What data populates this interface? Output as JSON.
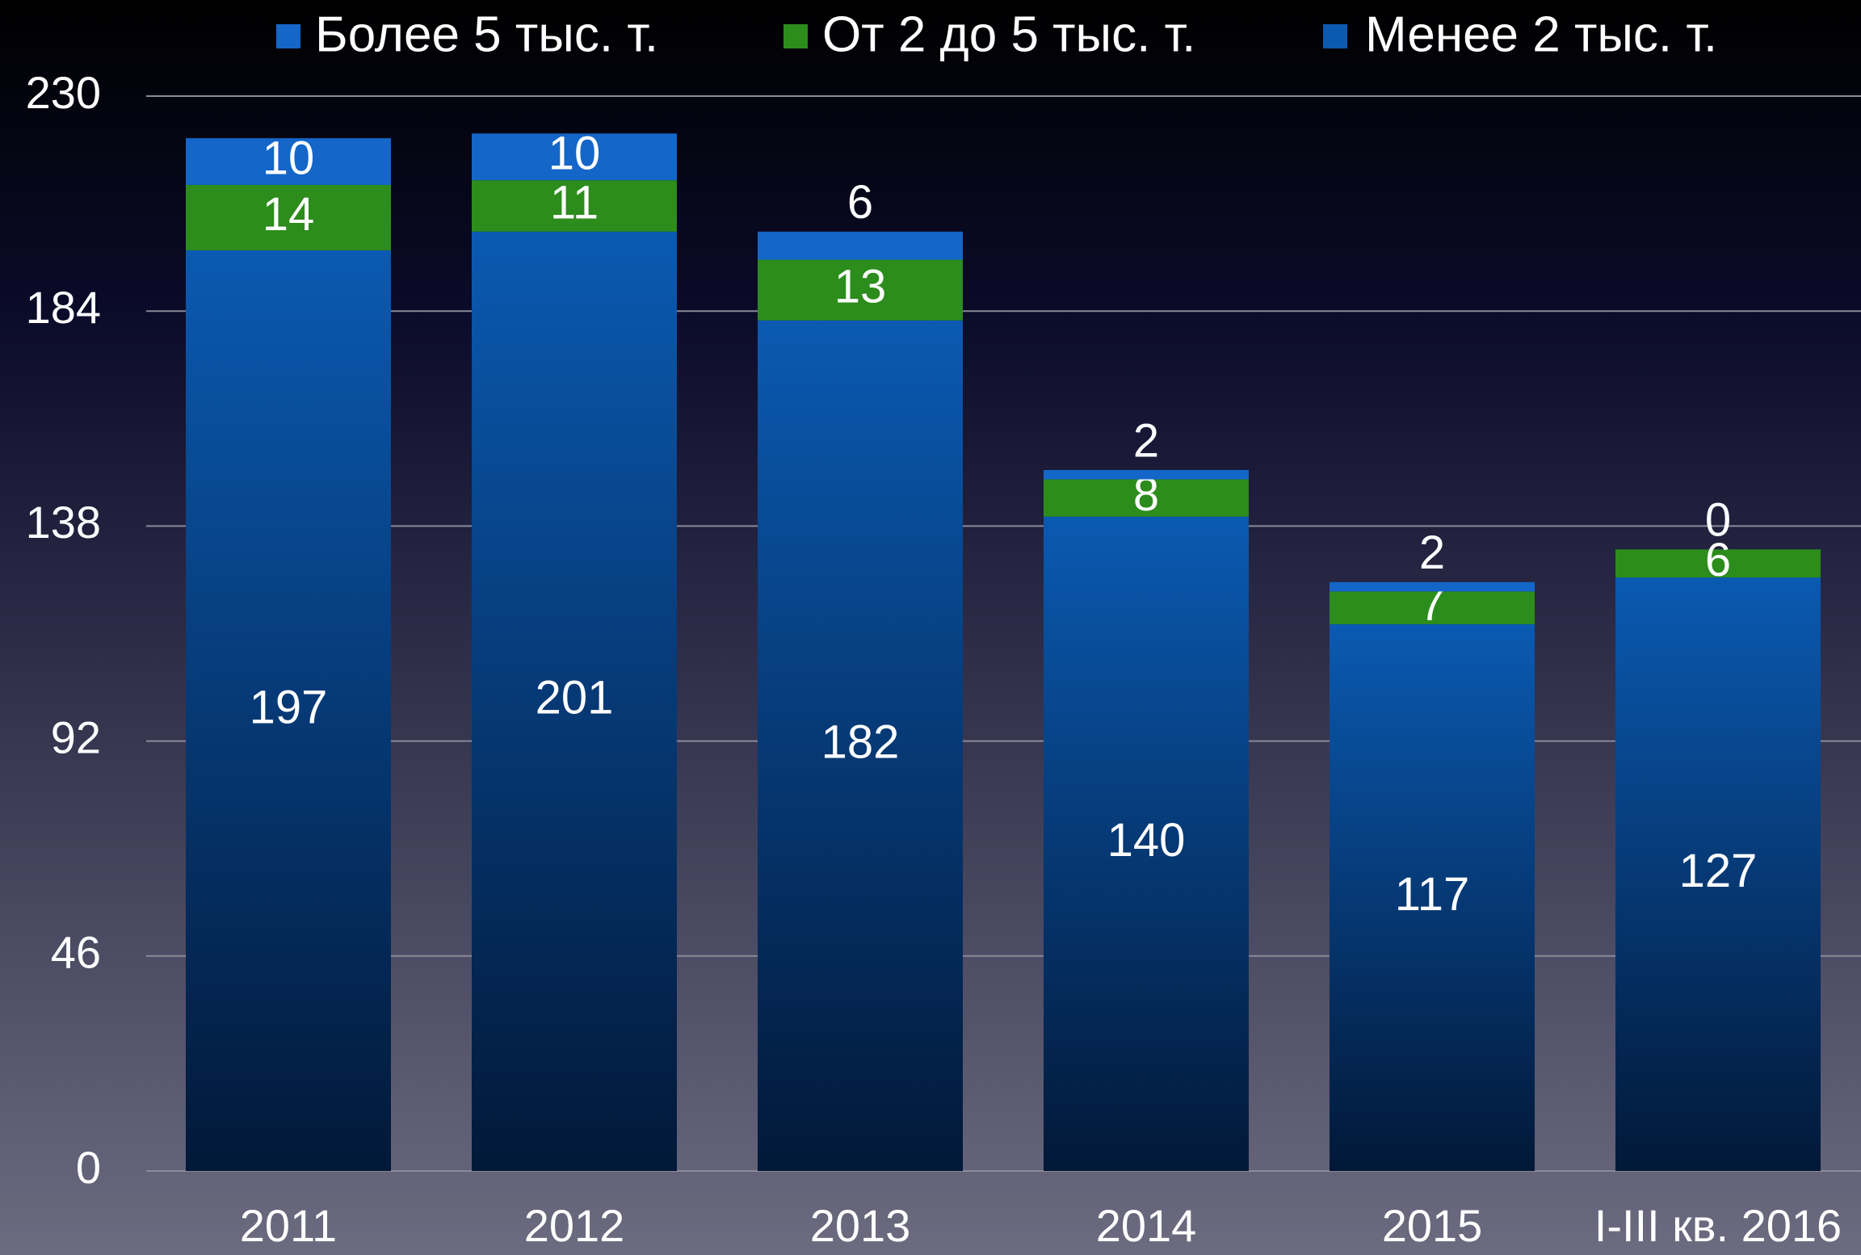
{
  "chart_data": {
    "type": "stacked_bar",
    "categories": [
      "2011",
      "2012",
      "2013",
      "2014",
      "2015",
      "I-III кв. 2016"
    ],
    "series": [
      {
        "name": "Более 5 тыс. т.",
        "color": "#1466c8",
        "values": [
          10,
          10,
          6,
          2,
          2,
          0
        ]
      },
      {
        "name": "От 2 до 5 тыс. т.",
        "color": "#2c8c1c",
        "values": [
          14,
          11,
          13,
          8,
          7,
          6
        ]
      },
      {
        "name": "Менее 2 тыс. т.",
        "color": "#0a5ab2",
        "values": [
          197,
          201,
          182,
          140,
          117,
          127
        ]
      }
    ],
    "ylim": [
      0,
      230
    ],
    "yticks": [
      0,
      46,
      92,
      138,
      184,
      230
    ],
    "grid": true,
    "legend": "top"
  }
}
